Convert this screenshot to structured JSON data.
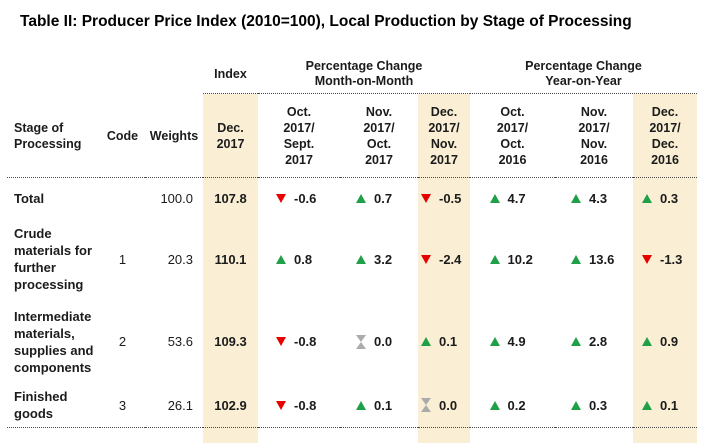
{
  "title": "Table II: Producer Price Index (2010=100), Local Production by Stage of Processing",
  "colors": {
    "highlight_column": "#FAEFD4",
    "increase_green": "#1FA048",
    "decrease_red": "#E60000",
    "no_change_gray": "#ABABAB",
    "text": "#1B1B1B"
  },
  "table": {
    "group_headers": {
      "index": "Index",
      "mom": "Percentage Change\nMonth-on-Month",
      "yoy": "Percentage Change\nYear-on-Year"
    },
    "columns": [
      "Stage of\nProcessing",
      "Code",
      "Weights",
      "Dec.\n2017",
      "Oct.\n2017/\nSept.\n2017",
      "Nov.\n2017/\nOct.\n2017",
      "Dec.\n2017/\nNov.\n2017",
      "Oct.\n2017/\nOct.\n2016",
      "Nov.\n2017/\nNov.\n2016",
      "Dec.\n2017/\nDec.\n2016"
    ],
    "rows": [
      {
        "label": "Total",
        "code": "",
        "weight": "100.0",
        "index": "107.8",
        "mom": [
          {
            "dir": "down",
            "value": "-0.6"
          },
          {
            "dir": "up",
            "value": "0.7"
          },
          {
            "dir": "down",
            "value": "-0.5"
          }
        ],
        "yoy": [
          {
            "dir": "up",
            "value": "4.7"
          },
          {
            "dir": "up",
            "value": "4.3"
          },
          {
            "dir": "up",
            "value": "0.3"
          }
        ]
      },
      {
        "label": "Crude\nmaterials for\nfurther\nprocessing",
        "code": "1",
        "weight": "20.3",
        "index": "110.1",
        "mom": [
          {
            "dir": "up",
            "value": "0.8"
          },
          {
            "dir": "up",
            "value": "3.2"
          },
          {
            "dir": "down",
            "value": "-2.4"
          }
        ],
        "yoy": [
          {
            "dir": "up",
            "value": "10.2"
          },
          {
            "dir": "up",
            "value": "13.6"
          },
          {
            "dir": "down",
            "value": "-1.3"
          }
        ]
      },
      {
        "label": "Intermediate\nmaterials,\nsupplies and\ncomponents",
        "code": "2",
        "weight": "53.6",
        "index": "109.3",
        "mom": [
          {
            "dir": "down",
            "value": "-0.8"
          },
          {
            "dir": "flat",
            "value": "0.0"
          },
          {
            "dir": "up",
            "value": "0.1"
          }
        ],
        "yoy": [
          {
            "dir": "up",
            "value": "4.9"
          },
          {
            "dir": "up",
            "value": "2.8"
          },
          {
            "dir": "up",
            "value": "0.9"
          }
        ]
      },
      {
        "label": "Finished goods",
        "code": "3",
        "weight": "26.1",
        "index": "102.9",
        "mom": [
          {
            "dir": "down",
            "value": "-0.8"
          },
          {
            "dir": "up",
            "value": "0.1"
          },
          {
            "dir": "flat",
            "value": "0.0"
          }
        ],
        "yoy": [
          {
            "dir": "up",
            "value": "0.2"
          },
          {
            "dir": "up",
            "value": "0.3"
          },
          {
            "dir": "up",
            "value": "0.1"
          }
        ]
      }
    ]
  },
  "chart_data": {
    "type": "table",
    "title": "Table II: Producer Price Index (2010=100), Local Production by Stage of Processing",
    "column_groups": [
      "Index",
      "Percentage Change Month-on-Month",
      "Percentage Change Year-on-Year"
    ],
    "columns": [
      "Stage of Processing",
      "Code",
      "Weights",
      "Dec. 2017",
      "Oct. 2017/Sept. 2017",
      "Nov. 2017/Oct. 2017",
      "Dec. 2017/Nov. 2017",
      "Oct. 2017/Oct. 2016",
      "Nov. 2017/Nov. 2016",
      "Dec. 2017/Dec. 2016"
    ],
    "rows": [
      [
        "Total",
        null,
        100.0,
        107.8,
        -0.6,
        0.7,
        -0.5,
        4.7,
        4.3,
        0.3
      ],
      [
        "Crude materials for further processing",
        1,
        20.3,
        110.1,
        0.8,
        3.2,
        -2.4,
        10.2,
        13.6,
        -1.3
      ],
      [
        "Intermediate materials, supplies and components",
        2,
        53.6,
        109.3,
        -0.8,
        0.0,
        0.1,
        4.9,
        2.8,
        0.9
      ],
      [
        "Finished goods",
        3,
        26.1,
        102.9,
        -0.8,
        0.1,
        0.0,
        0.2,
        0.3,
        0.1
      ]
    ],
    "notes": "Up green triangle = increase, down red triangle = decrease, gray hourglass = no change. Dec. columns highlighted in cream."
  }
}
